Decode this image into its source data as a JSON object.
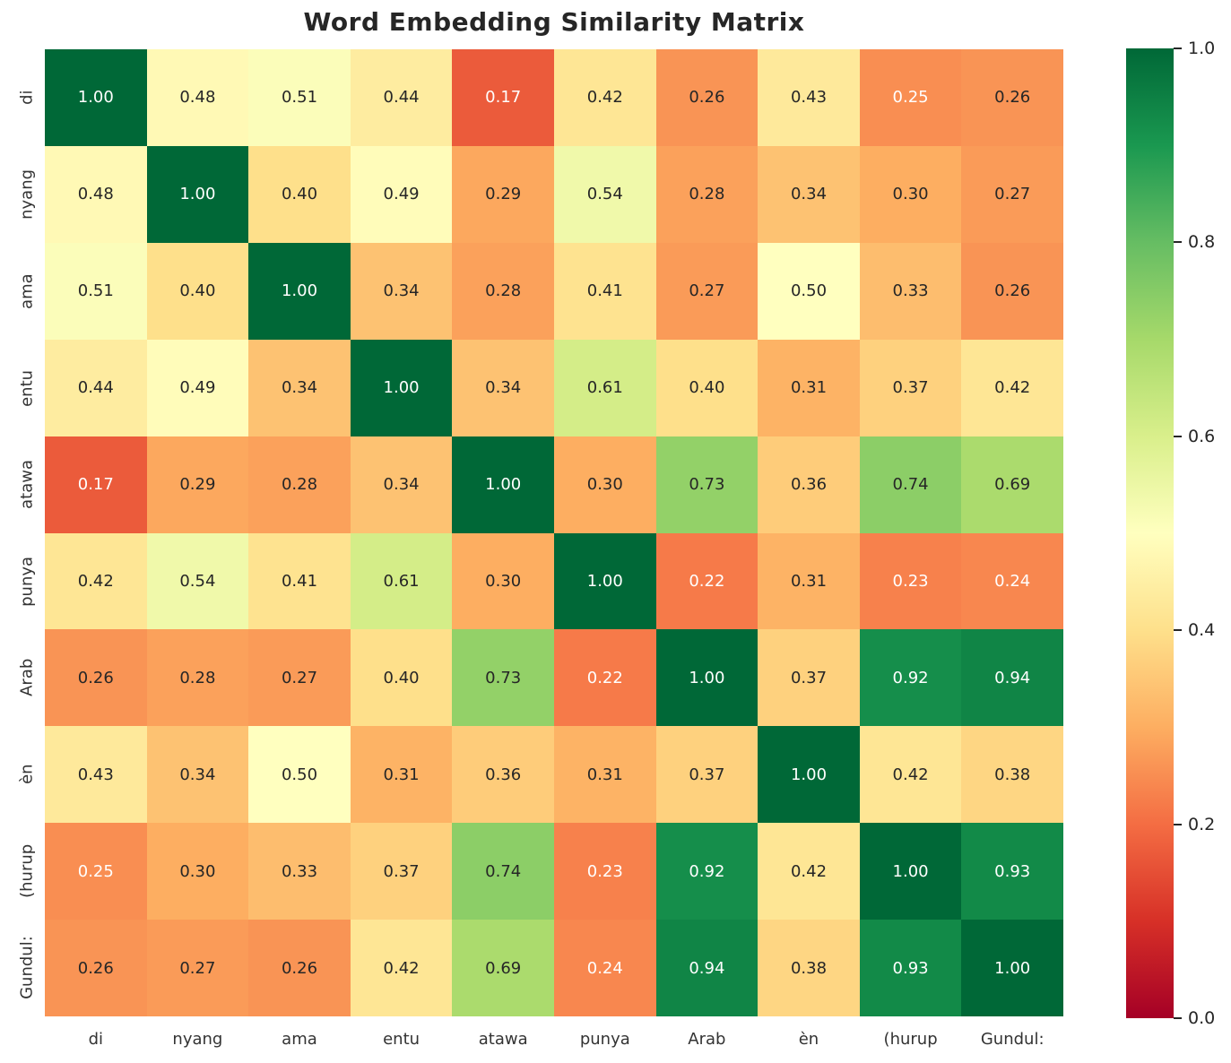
{
  "figure": {
    "background": "#ffffff",
    "title_color": "#262626",
    "tick_label_color": "#333333"
  },
  "chart_data": {
    "type": "heatmap",
    "title": "Word Embedding Similarity Matrix",
    "categories": [
      "di",
      "nyang",
      "ama",
      "entu",
      "atawa",
      "punya",
      "Arab",
      "èn",
      "(hurup",
      "Gundul:"
    ],
    "matrix": [
      [
        1.0,
        0.48,
        0.51,
        0.44,
        0.17,
        0.42,
        0.26,
        0.43,
        0.25,
        0.26
      ],
      [
        0.48,
        1.0,
        0.4,
        0.49,
        0.29,
        0.54,
        0.28,
        0.34,
        0.3,
        0.27
      ],
      [
        0.51,
        0.4,
        1.0,
        0.34,
        0.28,
        0.41,
        0.27,
        0.5,
        0.33,
        0.26
      ],
      [
        0.44,
        0.49,
        0.34,
        1.0,
        0.34,
        0.61,
        0.4,
        0.31,
        0.37,
        0.42
      ],
      [
        0.17,
        0.29,
        0.28,
        0.34,
        1.0,
        0.3,
        0.73,
        0.36,
        0.74,
        0.69
      ],
      [
        0.42,
        0.54,
        0.41,
        0.61,
        0.3,
        1.0,
        0.22,
        0.31,
        0.23,
        0.24
      ],
      [
        0.26,
        0.28,
        0.27,
        0.4,
        0.73,
        0.22,
        1.0,
        0.37,
        0.92,
        0.94
      ],
      [
        0.43,
        0.34,
        0.5,
        0.31,
        0.36,
        0.31,
        0.37,
        1.0,
        0.42,
        0.38
      ],
      [
        0.25,
        0.3,
        0.33,
        0.37,
        0.74,
        0.23,
        0.92,
        0.42,
        1.0,
        0.93
      ],
      [
        0.26,
        0.27,
        0.26,
        0.42,
        0.69,
        0.24,
        0.94,
        0.38,
        0.93,
        1.0
      ]
    ],
    "vmin": 0.0,
    "vmax": 1.0,
    "value_decimals": 2,
    "grid": false,
    "legend_position": "none",
    "colormap_name": "RdYlGn",
    "colormap_anchors": [
      {
        "pos": 0.0,
        "color": "#a50026"
      },
      {
        "pos": 0.1,
        "color": "#d73027"
      },
      {
        "pos": 0.2,
        "color": "#f46d43"
      },
      {
        "pos": 0.3,
        "color": "#fdae61"
      },
      {
        "pos": 0.4,
        "color": "#fee08b"
      },
      {
        "pos": 0.5,
        "color": "#ffffbf"
      },
      {
        "pos": 0.6,
        "color": "#d9ef8b"
      },
      {
        "pos": 0.7,
        "color": "#a6d96a"
      },
      {
        "pos": 0.8,
        "color": "#66bd63"
      },
      {
        "pos": 0.9,
        "color": "#1a9850"
      },
      {
        "pos": 1.0,
        "color": "#006837"
      }
    ],
    "annotation_colors": {
      "dark": "#262626",
      "light": "#ffffff"
    },
    "annotation_luminance_threshold": 0.408,
    "colorbar": {
      "position": "right",
      "ticks": [
        {
          "value": 1.0,
          "label": "1.0"
        },
        {
          "value": 0.8,
          "label": "0.8"
        },
        {
          "value": 0.6,
          "label": "0.6"
        },
        {
          "value": 0.4,
          "label": "0.4"
        },
        {
          "value": 0.2,
          "label": "0.2"
        },
        {
          "value": 0.0,
          "label": "0.0"
        }
      ]
    }
  }
}
